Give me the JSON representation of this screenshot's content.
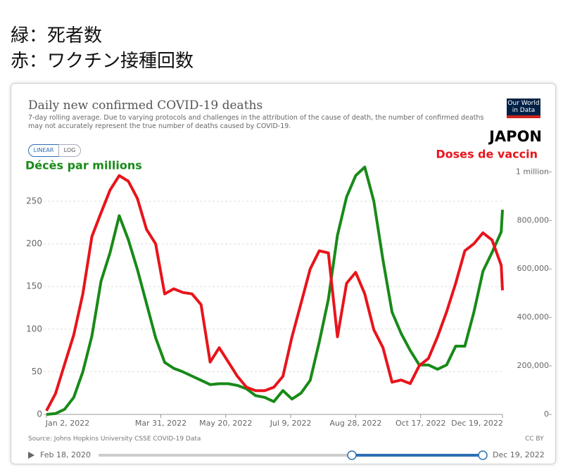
{
  "header": {
    "lines": [
      "緑：死者数",
      "赤：ワクチン接種回数"
    ]
  },
  "ui": {
    "logo": "Our World in Data",
    "scale_buttons": [
      "LINEAR",
      "LOG"
    ],
    "source": "Source: Johns Hopkins University CSSE COVID-19 Data",
    "license": "CC BY",
    "slider_start": "Feb 18, 2020",
    "slider_end": "Dec 19, 2022"
  },
  "chart_data": {
    "type": "line",
    "title": "Daily new confirmed COVID-19 deaths",
    "subtitle": "7-day rolling average. Due to varying protocols and challenges in the attribution of the cause of death, the number of confirmed deaths may not accurately represent the true number of deaths caused by COVID-19.",
    "annotations": [
      "JAPON"
    ],
    "grid": true,
    "x": [
      "2022-01-02",
      "2022-01-09",
      "2022-01-16",
      "2022-01-23",
      "2022-01-30",
      "2022-02-06",
      "2022-02-13",
      "2022-02-20",
      "2022-02-27",
      "2022-03-06",
      "2022-03-13",
      "2022-03-20",
      "2022-03-27",
      "2022-04-03",
      "2022-04-10",
      "2022-04-17",
      "2022-04-24",
      "2022-05-01",
      "2022-05-08",
      "2022-05-15",
      "2022-05-22",
      "2022-05-29",
      "2022-06-05",
      "2022-06-12",
      "2022-06-19",
      "2022-06-26",
      "2022-07-03",
      "2022-07-10",
      "2022-07-17",
      "2022-07-24",
      "2022-07-31",
      "2022-08-07",
      "2022-08-14",
      "2022-08-21",
      "2022-08-28",
      "2022-09-04",
      "2022-09-11",
      "2022-09-18",
      "2022-09-25",
      "2022-10-02",
      "2022-10-09",
      "2022-10-16",
      "2022-10-23",
      "2022-10-30",
      "2022-11-06",
      "2022-11-13",
      "2022-11-20",
      "2022-11-27",
      "2022-12-04",
      "2022-12-11",
      "2022-12-18",
      "2022-12-19"
    ],
    "xlim": [
      "2022-01-02",
      "2022-12-19"
    ],
    "xticks": [
      {
        "value": "2022-01-02",
        "label": "Jan 2, 2022"
      },
      {
        "value": "2022-03-31",
        "label": "Mar 31, 2022"
      },
      {
        "value": "2022-05-20",
        "label": "May 20, 2022"
      },
      {
        "value": "2022-07-09",
        "label": "Jul 9, 2022"
      },
      {
        "value": "2022-08-28",
        "label": "Aug 28, 2022"
      },
      {
        "value": "2022-10-17",
        "label": "Oct 17, 2022"
      },
      {
        "value": "2022-12-19",
        "label": "Dec 19, 2022"
      }
    ],
    "ylim": [
      0,
      290
    ],
    "yticks": [
      0,
      50,
      100,
      150,
      200,
      250
    ],
    "y2lim": [
      0,
      1020000
    ],
    "y2ticks": [
      0,
      {
        "value": 200000,
        "label": "200,000"
      },
      {
        "value": 400000,
        "label": "400,000"
      },
      {
        "value": 600000,
        "label": "600,000"
      },
      {
        "value": 800000,
        "label": "800,000"
      },
      {
        "value": 1000000,
        "label": "1 million"
      }
    ],
    "series": [
      {
        "name": "Décès par millions",
        "color": "#188a18",
        "values": [
          0,
          1,
          6,
          20,
          50,
          92,
          156,
          190,
          233,
          205,
          170,
          130,
          90,
          61,
          54,
          50,
          45,
          40,
          35,
          36,
          36,
          34,
          30,
          22,
          20,
          15,
          28,
          18,
          25,
          40,
          85,
          135,
          210,
          255,
          280,
          290,
          250,
          181,
          120,
          95,
          75,
          58,
          58,
          53,
          58,
          80,
          80,
          120,
          168,
          190,
          214,
          240
        ]
      },
      {
        "name": "Doses de vaccin",
        "color": "#e8141b",
        "axis": "y2",
        "values": [
          15000,
          86000,
          207000,
          328000,
          497000,
          734000,
          831000,
          926000,
          985000,
          962000,
          891000,
          763000,
          704000,
          497000,
          518000,
          503000,
          497000,
          453000,
          216000,
          275000,
          216000,
          157000,
          112000,
          98000,
          98000,
          112000,
          157000,
          320000,
          459000,
          600000,
          675000,
          666000,
          320000,
          541000,
          586000,
          497000,
          349000,
          275000,
          133000,
          142000,
          127000,
          201000,
          231000,
          320000,
          423000,
          541000,
          675000,
          704000,
          749000,
          719000,
          615000,
          512000
        ]
      }
    ]
  }
}
